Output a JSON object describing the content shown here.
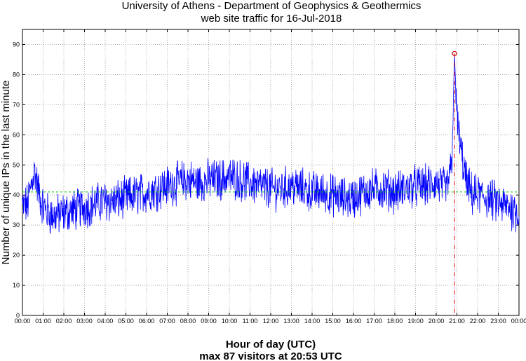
{
  "chart_data": {
    "type": "line",
    "title": "University of Athens - Department of Geophysics & Geothermics",
    "subtitle": "web site traffic for 16-Jul-2018",
    "xlabel": "Hour of day (UTC)",
    "ylabel": "Number of unique IPs in the last minute",
    "caption": "max 87 visitors at 20:53 UTC",
    "xlim": [
      "00:00",
      "24:00"
    ],
    "ylim": [
      0,
      95
    ],
    "x_tick_labels": [
      "00:00",
      "01:00",
      "02:00",
      "03:00",
      "04:00",
      "05:00",
      "06:00",
      "07:00",
      "08:00",
      "09:00",
      "10:00",
      "11:00",
      "12:00",
      "13:00",
      "14:00",
      "15:00",
      "16:00",
      "17:00",
      "18:00",
      "19:00",
      "20:00",
      "21:00",
      "22:00",
      "23:00",
      "00:00"
    ],
    "y_ticks": [
      0,
      10,
      20,
      30,
      40,
      50,
      60,
      70,
      80,
      90
    ],
    "grid": true,
    "mean_line": {
      "value": 41,
      "color": "#00cc00"
    },
    "max_marker": {
      "time": "20:53",
      "value": 87,
      "color": "#dd0000"
    },
    "series": [
      {
        "color": "#0000ff",
        "x_hours": [
          0,
          0.25,
          0.5,
          0.6,
          0.75,
          1,
          1.25,
          1.5,
          2,
          2.5,
          3,
          3.5,
          4,
          4.5,
          5,
          5.5,
          6,
          6.5,
          7,
          7.5,
          8,
          8.5,
          9,
          9.5,
          10,
          10.5,
          11,
          11.5,
          12,
          12.5,
          13,
          13.5,
          14,
          14.5,
          15,
          15.5,
          16,
          16.5,
          17,
          17.5,
          18,
          18.5,
          19,
          19.5,
          20,
          20.5,
          20.75,
          20.883,
          21,
          21.25,
          21.5,
          21.75,
          22,
          22.5,
          23,
          23.5,
          24
        ],
        "values": [
          36,
          37,
          46,
          48,
          42,
          36,
          34,
          33,
          34,
          35,
          36,
          37,
          38,
          38,
          39,
          40,
          41,
          42,
          43,
          44,
          45,
          44,
          45,
          45,
          46,
          45,
          44,
          43,
          42,
          42,
          43,
          42,
          41,
          41,
          40,
          39,
          39,
          41,
          42,
          42,
          41,
          42,
          43,
          43,
          44,
          42,
          50,
          87,
          65,
          52,
          43,
          40,
          40,
          39,
          37,
          36,
          34
        ]
      }
    ]
  }
}
